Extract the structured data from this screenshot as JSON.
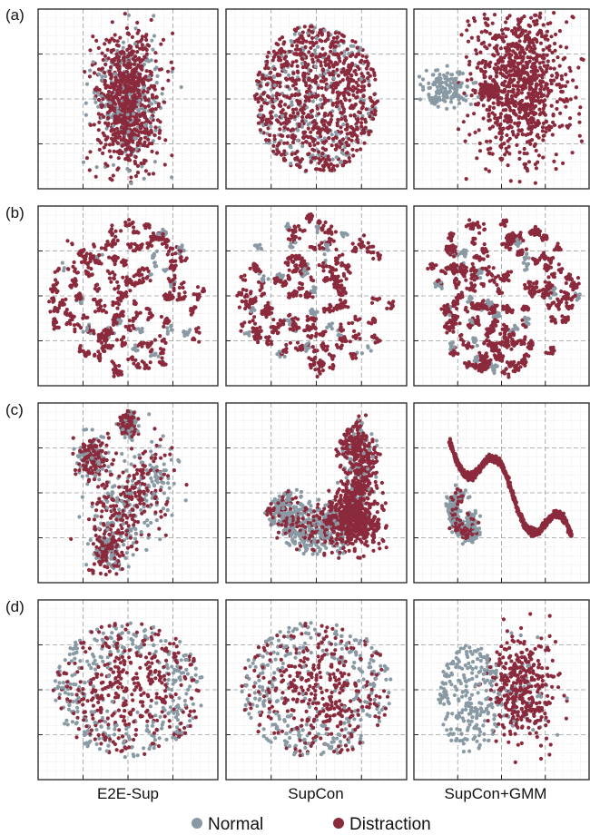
{
  "colors": {
    "normal": "#8a9aa4",
    "distraction": "#8b2a3c",
    "frame": "#222222",
    "grid_minor": "#dcdcdc",
    "grid_major": "#9a9a9a"
  },
  "rows": [
    "(a)",
    "(b)",
    "(c)",
    "(d)"
  ],
  "columns": [
    "E2E-Sup",
    "SupCon",
    "SupCon+GMM"
  ],
  "legend": [
    {
      "label": "Normal",
      "color": "#8a9aa4"
    },
    {
      "label": "Distraction",
      "color": "#8b2a3c"
    }
  ],
  "chart_data": {
    "type": "scatter",
    "series": [
      {
        "name": "Normal"
      },
      {
        "name": "Distraction"
      }
    ],
    "grid": true,
    "legend_placement": "bottom-center",
    "panels": [
      {
        "row": "(a)",
        "column": "E2E-Sup",
        "description_shape": "tall-ellipse"
      },
      {
        "row": "(a)",
        "column": "SupCon",
        "description_shape": "round-cloud"
      },
      {
        "row": "(a)",
        "column": "SupCon+GMM",
        "description_shape": "split-clusters"
      },
      {
        "row": "(b)",
        "column": "E2E-Sup",
        "description_shape": "scattered-disc"
      },
      {
        "row": "(b)",
        "column": "SupCon",
        "description_shape": "scattered-disc"
      },
      {
        "row": "(b)",
        "column": "SupCon+GMM",
        "description_shape": "dense-disc"
      },
      {
        "row": "(c)",
        "column": "E2E-Sup",
        "description_shape": "patchy-clusters"
      },
      {
        "row": "(c)",
        "column": "SupCon",
        "description_shape": "curved-bands"
      },
      {
        "row": "(c)",
        "column": "SupCon+GMM",
        "description_shape": "serpentine"
      },
      {
        "row": "(d)",
        "column": "E2E-Sup",
        "description_shape": "sparse-disc"
      },
      {
        "row": "(d)",
        "column": "SupCon",
        "description_shape": "sparse-disc"
      },
      {
        "row": "(d)",
        "column": "SupCon+GMM",
        "description_shape": "split-sparse"
      }
    ]
  }
}
